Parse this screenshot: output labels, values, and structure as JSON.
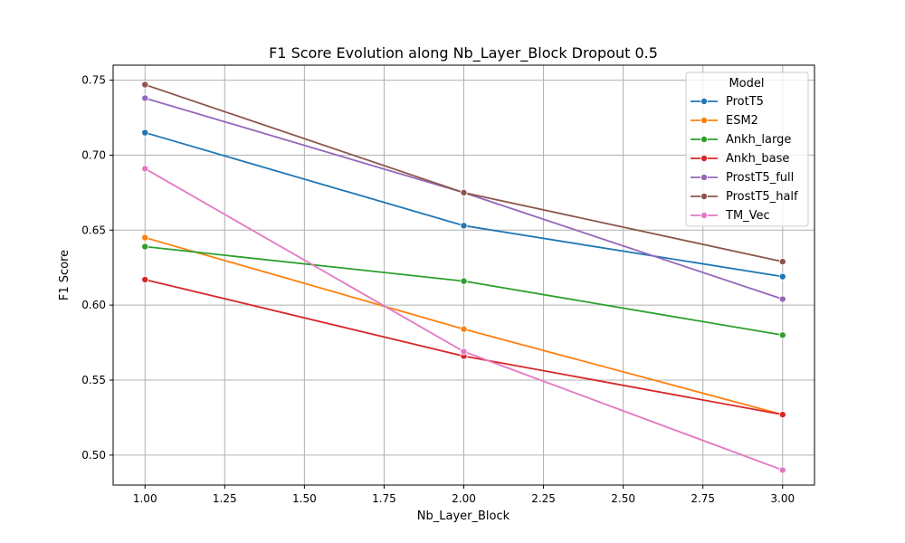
{
  "chart_data": {
    "type": "line",
    "title": "F1 Score Evolution along Nb_Layer_Block Dropout 0.5",
    "xlabel": "Nb_Layer_Block",
    "ylabel": "F1 Score",
    "xlim": [
      0.9,
      3.1
    ],
    "ylim": [
      0.48,
      0.76
    ],
    "xticks": [
      1.0,
      1.25,
      1.5,
      1.75,
      2.0,
      2.25,
      2.5,
      2.75,
      3.0
    ],
    "xtick_labels": [
      "1.00",
      "1.25",
      "1.50",
      "1.75",
      "2.00",
      "2.25",
      "2.50",
      "2.75",
      "3.00"
    ],
    "yticks": [
      0.5,
      0.55,
      0.6,
      0.65,
      0.7,
      0.75
    ],
    "ytick_labels": [
      "0.50",
      "0.55",
      "0.60",
      "0.65",
      "0.70",
      "0.75"
    ],
    "grid": true,
    "legend": {
      "title": "Model",
      "position": "top-right"
    },
    "x": [
      1,
      2,
      3
    ],
    "series": [
      {
        "name": "ProtT5",
        "color": "#1f77b4",
        "values": [
          0.715,
          0.653,
          0.619
        ]
      },
      {
        "name": "ESM2",
        "color": "#ff7f0e",
        "values": [
          0.645,
          0.584,
          0.527
        ]
      },
      {
        "name": "Ankh_large",
        "color": "#2ca02c",
        "values": [
          0.639,
          0.616,
          0.58
        ]
      },
      {
        "name": "Ankh_base",
        "color": "#d62728",
        "values": [
          0.617,
          0.566,
          0.527
        ]
      },
      {
        "name": "ProstT5_full",
        "color": "#9467bd",
        "values": [
          0.738,
          0.675,
          0.604
        ]
      },
      {
        "name": "ProstT5_half",
        "color": "#8c564b",
        "values": [
          0.747,
          0.675,
          0.629
        ]
      },
      {
        "name": "TM_Vec",
        "color": "#e377c2",
        "values": [
          0.691,
          0.569,
          0.49
        ]
      }
    ]
  }
}
